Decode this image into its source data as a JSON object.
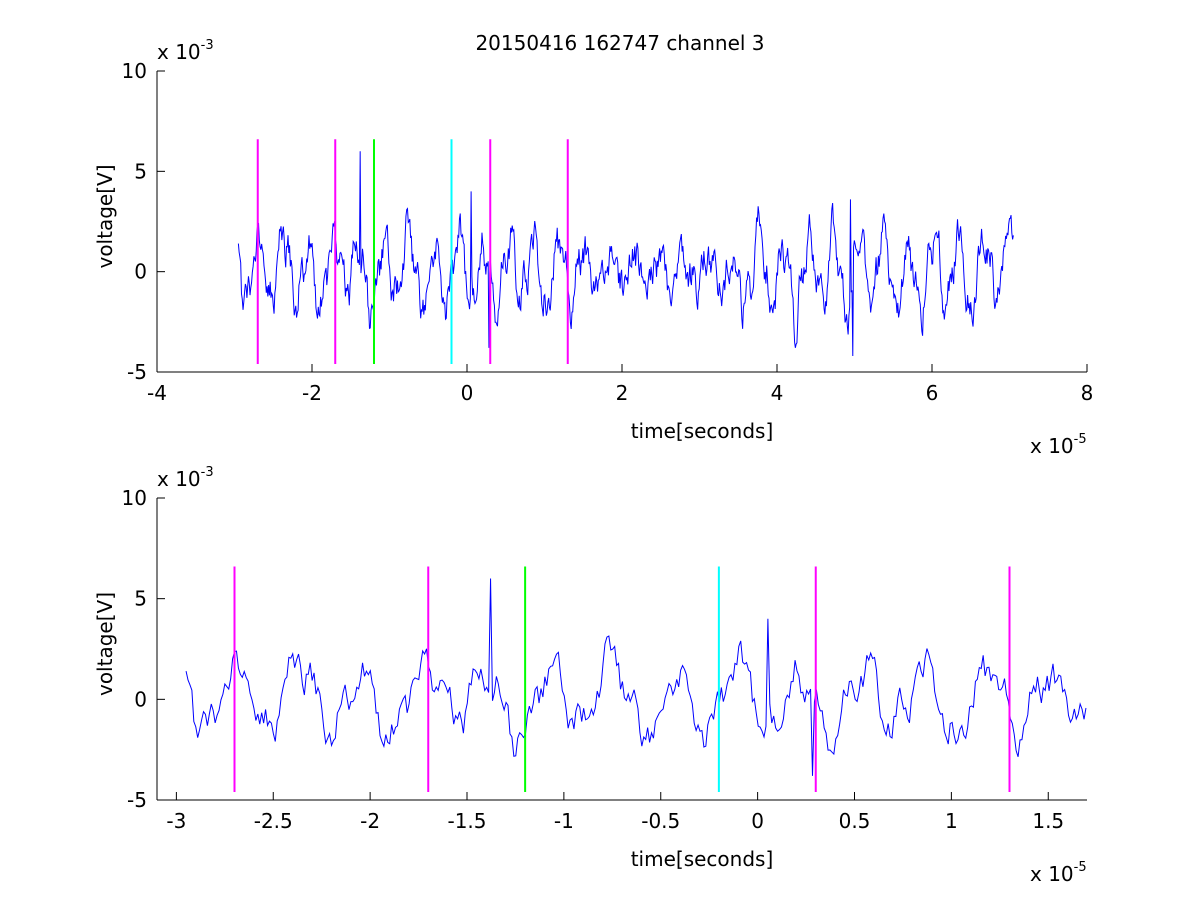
{
  "figure": {
    "title": "20150416 162747 channel 3",
    "colors": {
      "signal": "#0000ff",
      "marker_magenta": "#ff00ff",
      "marker_green": "#00ff00",
      "marker_cyan": "#00ffff",
      "axes": "#000000",
      "background": "#ffffff"
    }
  },
  "chart_data": [
    {
      "type": "line",
      "xlabel": "time[seconds]",
      "ylabel": "voltage[V]",
      "x_multiplier_base": "x 10",
      "x_multiplier_exp": "-5",
      "y_multiplier_base": "x 10",
      "y_multiplier_exp": "-3",
      "xlim": [
        -4,
        8
      ],
      "ylim": [
        -5,
        10
      ],
      "xticks": [
        -4,
        -2,
        0,
        2,
        4,
        6,
        8
      ],
      "xtick_labels": [
        "-4",
        "-2",
        "0",
        "2",
        "4",
        "6",
        "8"
      ],
      "yticks": [
        -5,
        0,
        5,
        10
      ],
      "ytick_labels": [
        "-5",
        "0",
        "5",
        "10"
      ],
      "grid": false,
      "signal": {
        "x_range": [
          -2.95,
          7.05
        ],
        "samples": 1000,
        "approx_amplitude": 2,
        "peaks": [
          {
            "x": -1.38,
            "y": 6.0
          },
          {
            "x": 0.05,
            "y": 4.0
          },
          {
            "x": 4.95,
            "y": 3.6
          },
          {
            "x": 4.98,
            "y": -4.2
          },
          {
            "x": 0.28,
            "y": -3.8
          }
        ]
      },
      "markers": [
        {
          "x": -2.7,
          "color": "magenta",
          "y_range": [
            -4.6,
            6.6
          ]
        },
        {
          "x": -1.7,
          "color": "magenta",
          "y_range": [
            -4.6,
            6.6
          ]
        },
        {
          "x": -1.2,
          "color": "green",
          "y_range": [
            -4.6,
            6.6
          ]
        },
        {
          "x": -0.2,
          "color": "cyan",
          "y_range": [
            -4.6,
            6.6
          ]
        },
        {
          "x": 0.3,
          "color": "magenta",
          "y_range": [
            -4.6,
            6.6
          ]
        },
        {
          "x": 1.3,
          "color": "magenta",
          "y_range": [
            -4.6,
            6.6
          ]
        }
      ]
    },
    {
      "type": "line",
      "xlabel": "time[seconds]",
      "ylabel": "voltage[V]",
      "x_multiplier_base": "x 10",
      "x_multiplier_exp": "-5",
      "y_multiplier_base": "x 10",
      "y_multiplier_exp": "-3",
      "xlim": [
        -3.1,
        1.7
      ],
      "ylim": [
        -5,
        10
      ],
      "xticks": [
        -3,
        -2.5,
        -2,
        -1.5,
        -1,
        -0.5,
        0,
        0.5,
        1,
        1.5
      ],
      "xtick_labels": [
        "-3",
        "-2.5",
        "-2",
        "-1.5",
        "-1",
        "-0.5",
        "0",
        "0.5",
        "1",
        "1.5"
      ],
      "yticks": [
        -5,
        0,
        5,
        10
      ],
      "ytick_labels": [
        "-5",
        "0",
        "5",
        "10"
      ],
      "grid": false,
      "signal": {
        "x_range": [
          -2.95,
          1.7
        ],
        "samples": 466,
        "approx_amplitude": 2,
        "peaks": [
          {
            "x": -1.38,
            "y": 6.0
          },
          {
            "x": 0.02,
            "y": 4.0
          },
          {
            "x": 0.27,
            "y": -3.8
          }
        ]
      },
      "markers": [
        {
          "x": -2.7,
          "color": "magenta",
          "y_range": [
            -4.6,
            6.6
          ]
        },
        {
          "x": -1.7,
          "color": "magenta",
          "y_range": [
            -4.6,
            6.6
          ]
        },
        {
          "x": -1.2,
          "color": "green",
          "y_range": [
            -4.6,
            6.6
          ]
        },
        {
          "x": -0.2,
          "color": "cyan",
          "y_range": [
            -4.6,
            6.6
          ]
        },
        {
          "x": 0.3,
          "color": "magenta",
          "y_range": [
            -4.6,
            6.6
          ]
        },
        {
          "x": 1.3,
          "color": "magenta",
          "y_range": [
            -4.6,
            6.6
          ]
        }
      ]
    }
  ]
}
